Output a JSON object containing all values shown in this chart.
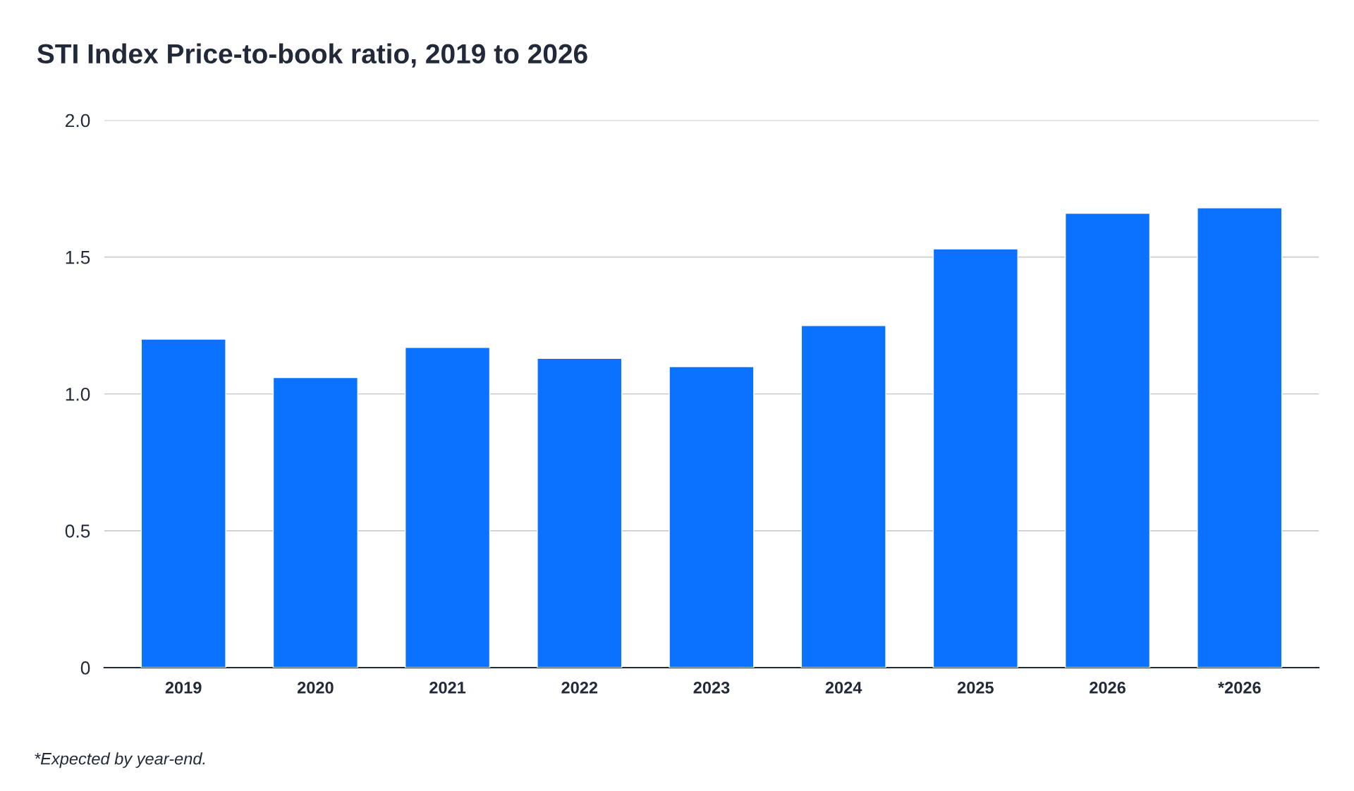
{
  "chart_data": {
    "type": "bar",
    "title": "STI Index Price-to-book ratio, 2019 to 2026",
    "categories": [
      "2019",
      "2020",
      "2021",
      "2022",
      "2023",
      "2024",
      "2025",
      "2026",
      "*2026"
    ],
    "values": [
      1.2,
      1.06,
      1.17,
      1.13,
      1.1,
      1.25,
      1.53,
      1.66,
      1.68
    ],
    "color": "#0a72ff",
    "ylim": [
      0,
      2.0
    ],
    "yticks": [
      {
        "value": 0,
        "label": "0"
      },
      {
        "value": 0.5,
        "label": "0.5"
      },
      {
        "value": 1.0,
        "label": "1.0"
      },
      {
        "value": 1.5,
        "label": "1.5"
      },
      {
        "value": 2.0,
        "label": "2.0"
      }
    ],
    "grid": "y",
    "annotations": [
      "*Expected by year-end."
    ]
  }
}
